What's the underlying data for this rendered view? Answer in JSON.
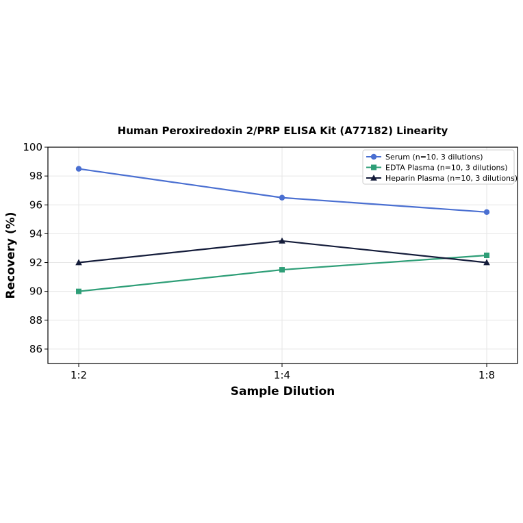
{
  "chart_data": {
    "type": "line",
    "title": "Human Peroxiredoxin 2/PRP ELISA Kit (A77182) Linearity",
    "xlabel": "Sample Dilution",
    "ylabel": "Recovery (%)",
    "categories": [
      "1:2",
      "1:4",
      "1:8"
    ],
    "ylim": [
      85,
      100
    ],
    "yticks": [
      86,
      88,
      90,
      92,
      94,
      96,
      98,
      100
    ],
    "grid": true,
    "legend_position": "top-right",
    "series": [
      {
        "name": "Serum (n=10, 3 dilutions)",
        "values": [
          98.5,
          96.5,
          95.5
        ],
        "color": "#4a6fd1",
        "marker": "circle"
      },
      {
        "name": "EDTA Plasma (n=10, 3 dilutions)",
        "values": [
          90.0,
          91.5,
          92.5
        ],
        "color": "#2e9e77",
        "marker": "square"
      },
      {
        "name": "Heparin Plasma (n=10, 3 dilutions)",
        "values": [
          92.0,
          93.5,
          92.0
        ],
        "color": "#141c3a",
        "marker": "triangle"
      }
    ]
  }
}
